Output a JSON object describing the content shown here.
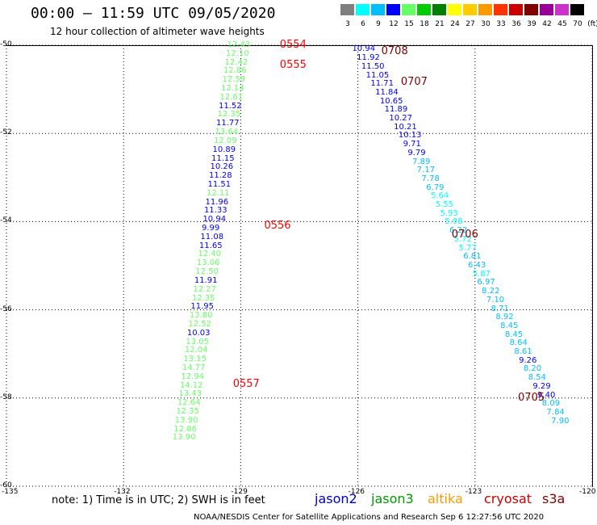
{
  "header": {
    "title": "00:00 – 11:59 UTC 09/05/2020",
    "subtitle": "12 hour collection of altimeter wave heights"
  },
  "legend": {
    "unit": "(ft)",
    "bins": [
      {
        "label": "3",
        "color": "#7f7f7f"
      },
      {
        "label": "6",
        "color": "#00ffff"
      },
      {
        "label": "9",
        "color": "#00bfff"
      },
      {
        "label": "12",
        "color": "#0000ff"
      },
      {
        "label": "15",
        "color": "#66ff66"
      },
      {
        "label": "18",
        "color": "#00cc00"
      },
      {
        "label": "21",
        "color": "#008000"
      },
      {
        "label": "24",
        "color": "#ffff00"
      },
      {
        "label": "27",
        "color": "#ffcc00"
      },
      {
        "label": "30",
        "color": "#ff9900"
      },
      {
        "label": "33",
        "color": "#ff3300"
      },
      {
        "label": "36",
        "color": "#cc0000"
      },
      {
        "label": "39",
        "color": "#800000"
      },
      {
        "label": "42",
        "color": "#990099"
      },
      {
        "label": "45",
        "color": "#cc33cc"
      },
      {
        "label": "70",
        "color": "#000000"
      }
    ]
  },
  "map": {
    "lat_range": [
      -60,
      -50
    ],
    "lon_range": [
      -135,
      -120
    ],
    "lat_labels": [
      "-50",
      "-52",
      "-54",
      "-56",
      "-58",
      "-60"
    ],
    "lon_labels": [
      "-135",
      "-132",
      "-129",
      "-126",
      "-123",
      "-120"
    ],
    "passes": [
      {
        "label": "0554",
        "lat": -50.0,
        "lon": -128.0,
        "color": "#ff0000"
      },
      {
        "label": "0555",
        "lat": -50.45,
        "lon": -128.0,
        "color": "#ff0000"
      },
      {
        "label": "0556",
        "lat": -54.1,
        "lon": -128.4,
        "color": "#ff0000"
      },
      {
        "label": "0557",
        "lat": -57.7,
        "lon": -129.2,
        "color": "#ff0000"
      },
      {
        "label": "0708",
        "lat": -50.15,
        "lon": -125.4,
        "color": "#800000"
      },
      {
        "label": "0707",
        "lat": -50.85,
        "lon": -124.9,
        "color": "#800000"
      },
      {
        "label": "0706",
        "lat": -54.3,
        "lon": -123.6,
        "color": "#800000"
      },
      {
        "label": "0705",
        "lat": -58.0,
        "lon": -121.9,
        "color": "#800000"
      }
    ]
  },
  "tracks": [
    {
      "name": "track-west",
      "lat_start": -50.0,
      "lat_step": -0.198,
      "lon_start": -129.1,
      "lon_end": -130.5,
      "values": [
        {
          "v": "12.43",
          "c": "#66ff66"
        },
        {
          "v": "12.10",
          "c": "#66ff66"
        },
        {
          "v": "12.42",
          "c": "#66ff66"
        },
        {
          "v": "12.86",
          "c": "#66ff66"
        },
        {
          "v": "12.59",
          "c": "#66ff66"
        },
        {
          "v": "12.14",
          "c": "#66ff66"
        },
        {
          "v": "12.61",
          "c": "#66ff66"
        },
        {
          "v": "11.52",
          "c": "#0000ff"
        },
        {
          "v": "12.35",
          "c": "#66ff66"
        },
        {
          "v": "11.77",
          "c": "#0000ff"
        },
        {
          "v": "13.64",
          "c": "#66ff66"
        },
        {
          "v": "12.09",
          "c": "#66ff66"
        },
        {
          "v": "10.89",
          "c": "#0000ff"
        },
        {
          "v": "11.15",
          "c": "#0000ff"
        },
        {
          "v": "10.26",
          "c": "#0000ff"
        },
        {
          "v": "11.28",
          "c": "#0000ff"
        },
        {
          "v": "11.51",
          "c": "#0000ff"
        },
        {
          "v": "12.11",
          "c": "#66ff66"
        },
        {
          "v": "11.96",
          "c": "#0000ff"
        },
        {
          "v": "11.33",
          "c": "#0000ff"
        },
        {
          "v": "10.94",
          "c": "#0000ff"
        },
        {
          "v": "9.99",
          "c": "#0000ff"
        },
        {
          "v": "11.08",
          "c": "#0000ff"
        },
        {
          "v": "11.65",
          "c": "#0000ff"
        },
        {
          "v": "12.40",
          "c": "#66ff66"
        },
        {
          "v": "13.06",
          "c": "#66ff66"
        },
        {
          "v": "12.50",
          "c": "#66ff66"
        },
        {
          "v": "11.91",
          "c": "#0000ff"
        },
        {
          "v": "12.27",
          "c": "#66ff66"
        },
        {
          "v": "12.35",
          "c": "#66ff66"
        },
        {
          "v": "11.95",
          "c": "#0000ff"
        },
        {
          "v": "13.80",
          "c": "#66ff66"
        },
        {
          "v": "12.52",
          "c": "#66ff66"
        },
        {
          "v": "10.03",
          "c": "#0000ff"
        },
        {
          "v": "13.05",
          "c": "#66ff66"
        },
        {
          "v": "12.04",
          "c": "#66ff66"
        },
        {
          "v": "13.15",
          "c": "#66ff66"
        },
        {
          "v": "14.77",
          "c": "#66ff66"
        },
        {
          "v": "12.94",
          "c": "#66ff66"
        },
        {
          "v": "14.12",
          "c": "#66ff66"
        },
        {
          "v": "13.43",
          "c": "#66ff66"
        },
        {
          "v": "12.64",
          "c": "#66ff66"
        },
        {
          "v": "12.35",
          "c": "#66ff66"
        },
        {
          "v": "13.90",
          "c": "#66ff66"
        },
        {
          "v": "12.86",
          "c": "#66ff66"
        },
        {
          "v": "13.90",
          "c": "#66ff66"
        }
      ]
    },
    {
      "name": "track-east",
      "lat_start": -50.1,
      "lat_step": -0.196,
      "lon_start": -125.9,
      "lon_end": -120.8,
      "values": [
        {
          "v": "10.94",
          "c": "#0000ff"
        },
        {
          "v": "11.92",
          "c": "#0000ff"
        },
        {
          "v": "11.50",
          "c": "#0000ff"
        },
        {
          "v": "11.05",
          "c": "#0000ff"
        },
        {
          "v": "11.71",
          "c": "#0000ff"
        },
        {
          "v": "11.84",
          "c": "#0000ff"
        },
        {
          "v": "10.65",
          "c": "#0000ff"
        },
        {
          "v": "11.89",
          "c": "#0000ff"
        },
        {
          "v": "10.27",
          "c": "#0000ff"
        },
        {
          "v": "10.21",
          "c": "#0000ff"
        },
        {
          "v": "10.13",
          "c": "#0000ff"
        },
        {
          "v": "9.71",
          "c": "#0000ff"
        },
        {
          "v": "9.79",
          "c": "#0000ff"
        },
        {
          "v": "7.89",
          "c": "#00bfff"
        },
        {
          "v": "7.17",
          "c": "#00bfff"
        },
        {
          "v": "7.78",
          "c": "#00bfff"
        },
        {
          "v": "6.79",
          "c": "#00bfff"
        },
        {
          "v": "5.64",
          "c": "#00ffff"
        },
        {
          "v": "5.55",
          "c": "#00ffff"
        },
        {
          "v": "5.93",
          "c": "#00ffff"
        },
        {
          "v": "5.98",
          "c": "#00ffff"
        },
        {
          "v": "6.22",
          "c": "#00bfff"
        },
        {
          "v": "5.72",
          "c": "#00ffff"
        },
        {
          "v": "5.77",
          "c": "#00ffff"
        },
        {
          "v": "6.81",
          "c": "#00bfff"
        },
        {
          "v": "6.43",
          "c": "#00bfff"
        },
        {
          "v": "5.87",
          "c": "#00ffff"
        },
        {
          "v": "6.97",
          "c": "#00bfff"
        },
        {
          "v": "8.22",
          "c": "#00bfff"
        },
        {
          "v": "7.10",
          "c": "#00bfff"
        },
        {
          "v": "8.71",
          "c": "#00bfff"
        },
        {
          "v": "8.92",
          "c": "#00bfff"
        },
        {
          "v": "8.45",
          "c": "#00bfff"
        },
        {
          "v": "8.45",
          "c": "#00bfff"
        },
        {
          "v": "8.64",
          "c": "#00bfff"
        },
        {
          "v": "8.61",
          "c": "#00bfff"
        },
        {
          "v": "9.26",
          "c": "#0000ff"
        },
        {
          "v": "8.20",
          "c": "#00bfff"
        },
        {
          "v": "8.54",
          "c": "#00bfff"
        },
        {
          "v": "9.29",
          "c": "#0000ff"
        },
        {
          "v": "9.40",
          "c": "#0000ff"
        },
        {
          "v": "8.09",
          "c": "#00bfff"
        },
        {
          "v": "7.84",
          "c": "#00bfff"
        },
        {
          "v": "7.90",
          "c": "#00bfff"
        }
      ]
    }
  ],
  "footer": {
    "note": "note: 1) Time is in UTC; 2) SWH is in feet",
    "satellites": [
      {
        "name": "jason2",
        "color": "#0000cc"
      },
      {
        "name": "jason3",
        "color": "#009900"
      },
      {
        "name": "altika",
        "color": "#ff9900"
      },
      {
        "name": "cryosat",
        "color": "#cc0000"
      },
      {
        "name": "s3a",
        "color": "#800000"
      }
    ],
    "credit": "NOAA/NESDIS Center for Satellite Applications and Research    Sep  6 12:27:56 UTC 2020"
  }
}
